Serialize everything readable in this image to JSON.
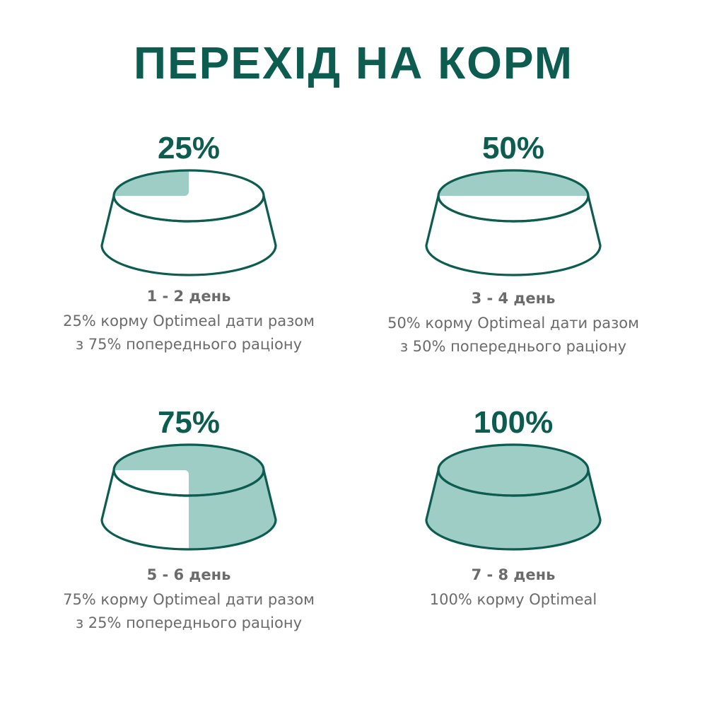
{
  "title": "ПЕРЕХІД НА КОРМ",
  "colors": {
    "primary": "#0c5c50",
    "fill": "#9dcdc4",
    "text": "#6b6b6b"
  },
  "steps": [
    {
      "percent_label": "25%",
      "fill_fraction": 0.25,
      "days": "1 - 2 день",
      "lines": [
        "25% корму Optimeal дати разом",
        "з 75% попереднього раціону"
      ]
    },
    {
      "percent_label": "50%",
      "fill_fraction": 0.5,
      "days": "3 - 4 день",
      "lines": [
        "50% корму Optimeal дати разом",
        "з 50% попереднього раціону"
      ]
    },
    {
      "percent_label": "75%",
      "fill_fraction": 0.75,
      "days": "5 - 6 день",
      "lines": [
        "75% корму Optimeal дати разом",
        "з 25% попереднього раціону"
      ]
    },
    {
      "percent_label": "100%",
      "fill_fraction": 1.0,
      "days": "7 - 8 день",
      "lines": [
        "100% корму Optimeal"
      ]
    }
  ]
}
